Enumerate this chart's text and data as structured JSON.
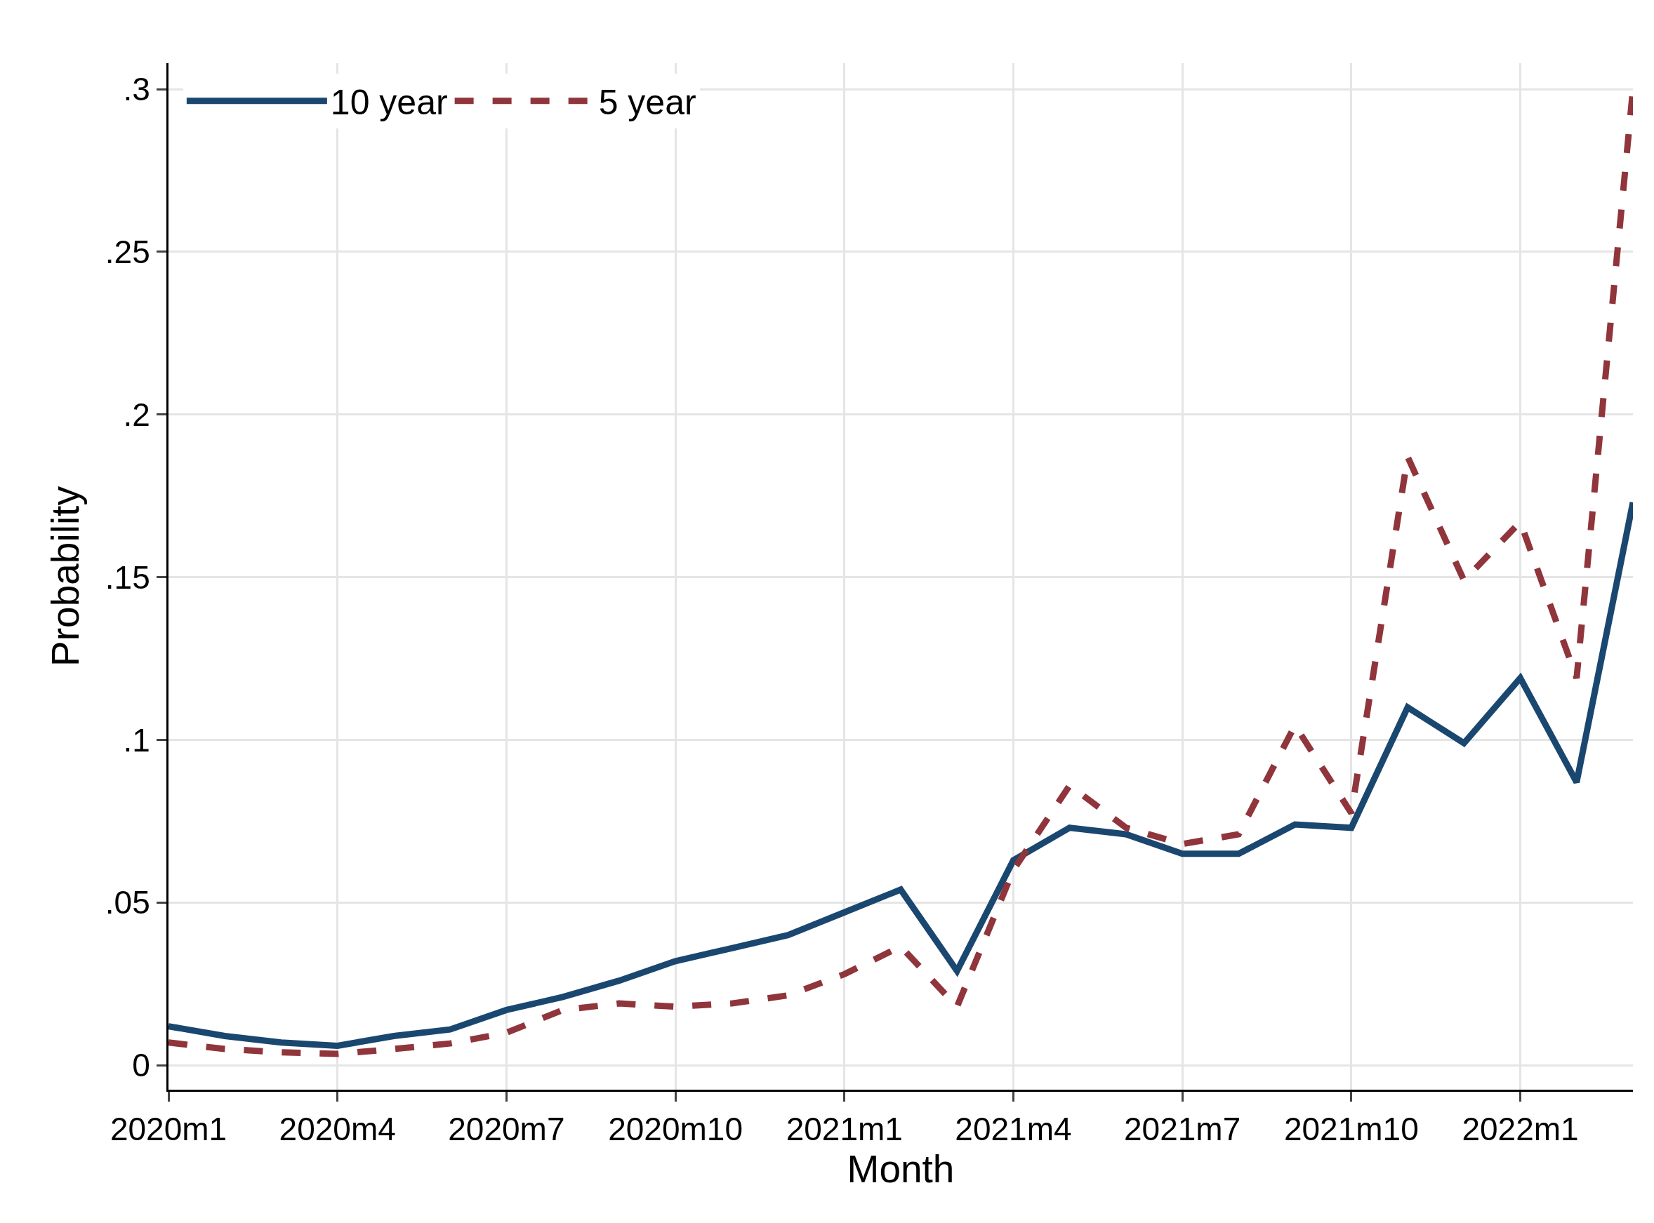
{
  "chart_data": {
    "type": "line",
    "xlabel": "Month",
    "ylabel": "Probability",
    "categories": [
      "2020m1",
      null,
      null,
      "2020m4",
      null,
      null,
      "2020m7",
      null,
      null,
      "2020m10",
      null,
      null,
      "2021m1",
      null,
      null,
      "2021m4",
      null,
      null,
      "2021m7",
      null,
      null,
      "2021m10",
      null,
      null,
      "2022m1",
      null,
      null
    ],
    "series": [
      {
        "name": "10 year",
        "color": "#1a476f",
        "line_style": "solid",
        "values": [
          0.012,
          0.009,
          0.007,
          0.006,
          0.009,
          0.011,
          0.017,
          0.021,
          0.026,
          0.032,
          0.036,
          0.04,
          0.047,
          0.054,
          0.029,
          0.063,
          0.073,
          0.071,
          0.065,
          0.065,
          0.074,
          0.073,
          0.11,
          0.099,
          0.119,
          0.087,
          0.173
        ]
      },
      {
        "name": "5 year",
        "color": "#90353b",
        "line_style": "dashed",
        "values": [
          0.007,
          0.005,
          0.004,
          0.0035,
          0.005,
          0.0067,
          0.01,
          0.017,
          0.019,
          0.018,
          0.019,
          0.0215,
          0.028,
          0.0365,
          0.018,
          0.06,
          0.086,
          0.073,
          0.068,
          0.071,
          0.1045,
          0.0775,
          0.187,
          0.149,
          0.167,
          0.119,
          0.3
        ]
      }
    ],
    "ylim": [
      -0.0075,
      0.308
    ],
    "yticks": [
      {
        "value": 0,
        "label": "0"
      },
      {
        "value": 0.05,
        "label": ".05"
      },
      {
        "value": 0.1,
        "label": ".1"
      },
      {
        "value": 0.15,
        "label": ".15"
      },
      {
        "value": 0.2,
        "label": ".2"
      },
      {
        "value": 0.25,
        "label": ".25"
      },
      {
        "value": 0.3,
        "label": ".3"
      }
    ],
    "grid": true,
    "legend": "top left",
    "marker": "none"
  }
}
